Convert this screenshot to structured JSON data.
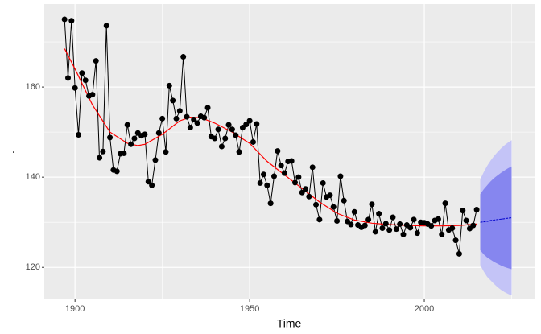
{
  "chart_data": {
    "type": "line",
    "x_label": "Time",
    "y_label": ".",
    "xlim": [
      1891.2,
      2031.8
    ],
    "ylim": [
      112.9,
      178.4
    ],
    "xticks": [
      1900,
      1950,
      2000
    ],
    "yticks": [
      120,
      140,
      160
    ],
    "x_minor_grid": [
      1925,
      1975,
      2025
    ],
    "y_minor_grid": [
      130,
      150,
      170
    ],
    "grid": true,
    "background": "#ebebeb",
    "grid_color": "#ffffff",
    "observed": {
      "color": "#000000",
      "x": [
        1897,
        1898,
        1899,
        1900,
        1901,
        1902,
        1903,
        1904,
        1905,
        1906,
        1907,
        1908,
        1909,
        1910,
        1911,
        1912,
        1913,
        1914,
        1915,
        1916,
        1917,
        1918,
        1919,
        1920,
        1921,
        1922,
        1923,
        1924,
        1925,
        1926,
        1927,
        1928,
        1929,
        1930,
        1931,
        1932,
        1933,
        1934,
        1935,
        1936,
        1937,
        1938,
        1939,
        1940,
        1941,
        1942,
        1943,
        1944,
        1945,
        1946,
        1947,
        1948,
        1949,
        1950,
        1951,
        1952,
        1953,
        1954,
        1955,
        1956,
        1957,
        1958,
        1959,
        1960,
        1961,
        1962,
        1963,
        1964,
        1965,
        1966,
        1967,
        1968,
        1969,
        1970,
        1971,
        1972,
        1973,
        1974,
        1975,
        1976,
        1977,
        1978,
        1979,
        1980,
        1981,
        1982,
        1983,
        1984,
        1985,
        1986,
        1987,
        1988,
        1989,
        1990,
        1991,
        1992,
        1993,
        1994,
        1995,
        1996,
        1997,
        1998,
        1999,
        2000,
        2001,
        2002,
        2003,
        2004,
        2005,
        2006,
        2007,
        2008,
        2009,
        2010,
        2011,
        2012,
        2013,
        2014,
        2015
      ],
      "values": [
        175,
        162,
        174.7,
        159.8,
        149.4,
        163.1,
        161.5,
        158,
        158.3,
        165.8,
        144.3,
        145.7,
        173.6,
        148.8,
        141.6,
        141.3,
        145.2,
        145.3,
        151.6,
        147.3,
        148.6,
        149.8,
        149.2,
        149.5,
        139,
        138.2,
        143.8,
        149.8,
        153,
        145.6,
        160.3,
        157,
        153,
        154.7,
        166.7,
        153.4,
        151,
        152.8,
        152,
        153.5,
        153.2,
        155.4,
        149,
        148.6,
        150.6,
        146.8,
        148.6,
        151.6,
        150.6,
        149.3,
        145.6,
        151,
        151.7,
        152.5,
        147.8,
        151.8,
        138.7,
        140.6,
        138.2,
        134.2,
        140.2,
        145.8,
        142.6,
        140.9,
        143.5,
        143.6,
        138.8,
        140,
        136.6,
        137.4,
        135.7,
        142.2,
        133.9,
        130.6,
        138.7,
        135.6,
        136,
        133.4,
        130.3,
        140.2,
        134.8,
        130.2,
        129.5,
        132.3,
        129.4,
        128.9,
        129.3,
        130.6,
        134,
        127.9,
        131.9,
        128.7,
        129.7,
        128.3,
        131.1,
        128.5,
        129.6,
        127.3,
        129.4,
        128.8,
        130.6,
        127.6,
        130,
        129.9,
        129.6,
        129.2,
        130.4,
        130.7,
        127.3,
        134.2,
        128.3,
        128.7,
        126,
        123,
        132.6,
        130.4,
        128.6,
        129.3,
        132.8
      ]
    },
    "smooth": {
      "color": "#ff0000",
      "x": [
        1897,
        1900,
        1905,
        1910,
        1915,
        1918,
        1920,
        1925,
        1930,
        1933,
        1936,
        1940,
        1945,
        1950,
        1955,
        1960,
        1965,
        1970,
        1975,
        1980,
        1985,
        1990,
        1995,
        2000,
        2005,
        2010,
        2015
      ],
      "values": [
        168.5,
        164,
        156,
        150,
        147.5,
        147,
        147.3,
        149.5,
        152.5,
        153.3,
        153.2,
        152,
        150,
        147.5,
        143.5,
        140.5,
        137.5,
        134.5,
        132,
        130.5,
        129.8,
        129.5,
        129.3,
        129.2,
        129.2,
        129.3,
        129.6
      ]
    },
    "forecast": {
      "mean_color": "#0000cc",
      "band80_color": "#8686ef",
      "band95_color": "#c4c4f7",
      "x": [
        2016,
        2017,
        2018,
        2019,
        2020,
        2021,
        2022,
        2023,
        2024,
        2025
      ],
      "mean": [
        130.0,
        130.1,
        130.2,
        130.4,
        130.5,
        130.6,
        130.7,
        130.8,
        130.9,
        131.0
      ],
      "hi80": [
        136.2,
        137.3,
        138.2,
        139.1,
        139.8,
        140.4,
        141.0,
        141.5,
        142.0,
        142.4
      ],
      "lo80": [
        123.8,
        122.9,
        122.2,
        121.7,
        121.2,
        120.8,
        120.4,
        120.1,
        119.8,
        119.6
      ],
      "hi95": [
        139.5,
        141.1,
        142.5,
        143.7,
        144.7,
        145.6,
        146.4,
        147.1,
        147.7,
        148.2
      ],
      "lo95": [
        120.5,
        119.1,
        117.9,
        117.1,
        116.3,
        115.6,
        115.0,
        114.5,
        114.1,
        113.8
      ]
    }
  }
}
